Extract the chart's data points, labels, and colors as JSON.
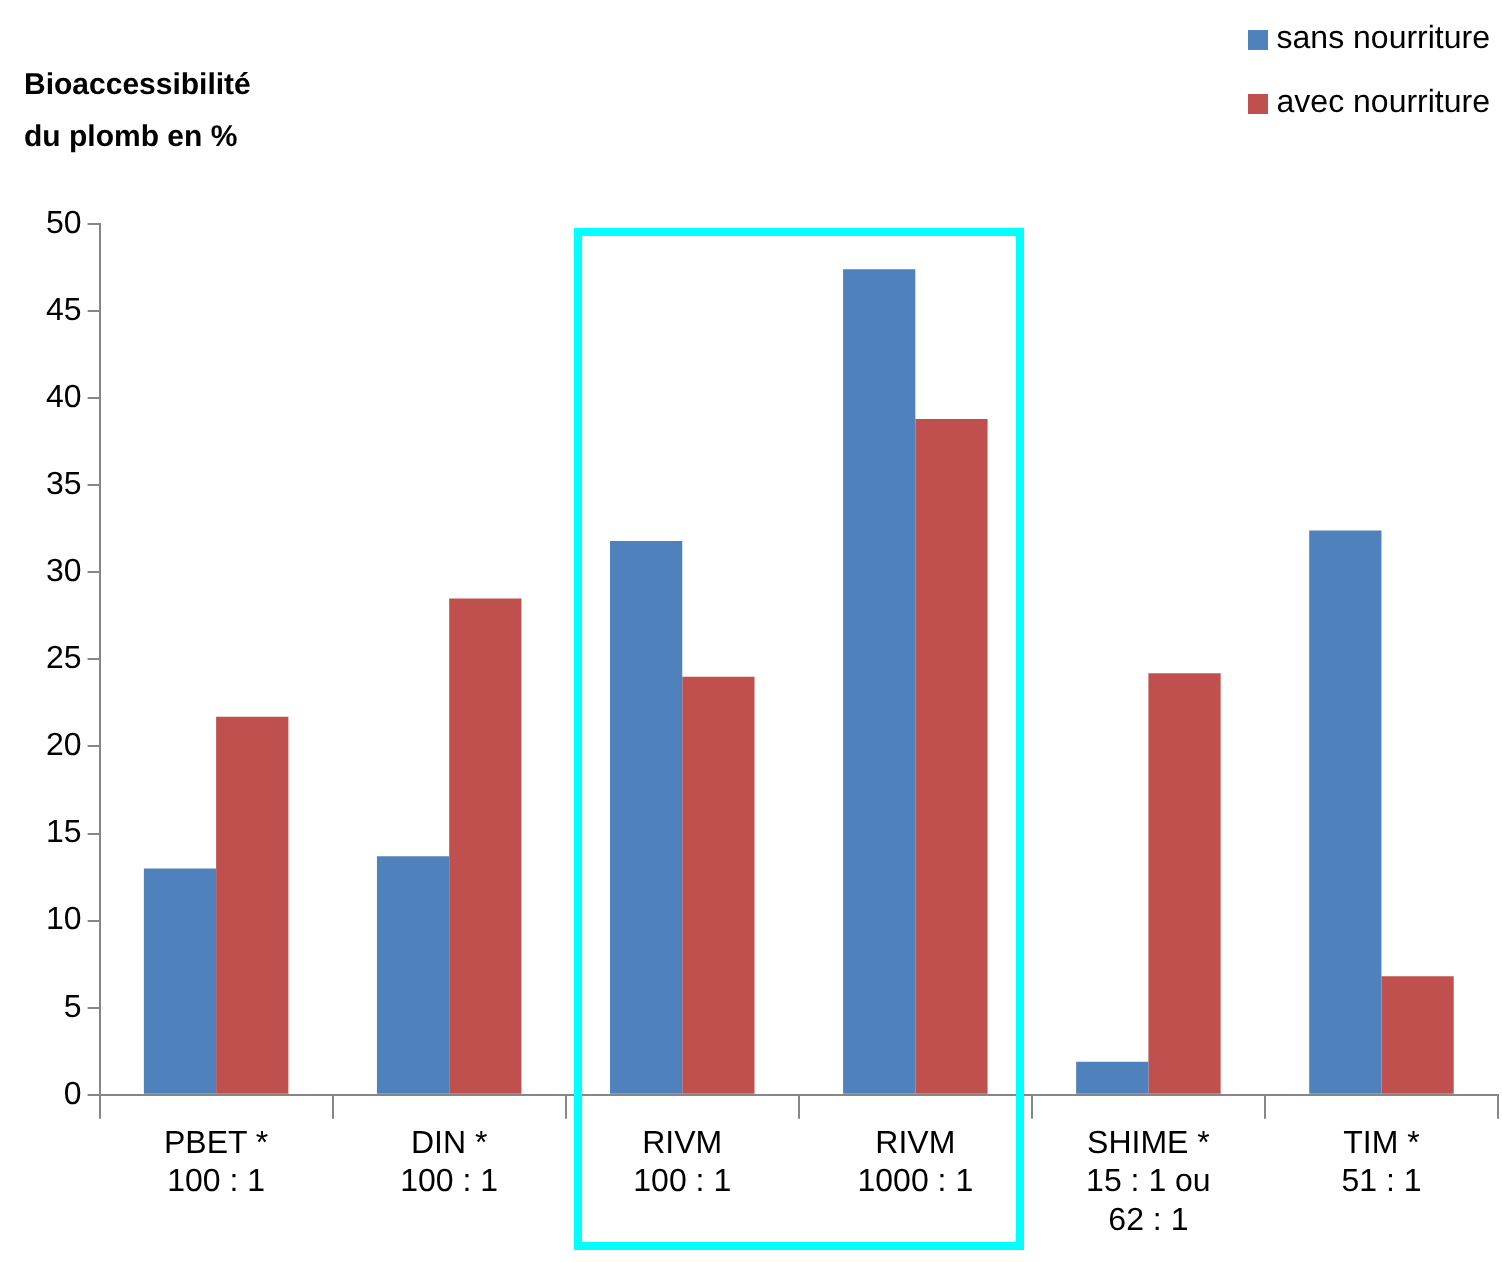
{
  "chart_data": {
    "type": "bar",
    "ylabel": "Bioaccessibilité\ndu plomb en %",
    "categories": [
      "PBET *\n100 : 1",
      "DIN *\n100 : 1",
      "RIVM\n100 : 1",
      "RIVM\n1000 : 1",
      "SHIME *\n15 : 1 ou\n62 : 1",
      "TIM *\n51 : 1"
    ],
    "series": [
      {
        "name": "sans nourriture",
        "color": "#4f81bd",
        "values": [
          13,
          13.7,
          31.8,
          47.4,
          1.9,
          32.4
        ]
      },
      {
        "name": "avec nourriture",
        "color": "#c0504d",
        "values": [
          21.7,
          28.5,
          24,
          38.8,
          24.2,
          6.8
        ]
      }
    ],
    "ylim": [
      0,
      50
    ],
    "yticks": [
      0,
      5,
      10,
      15,
      20,
      25,
      30,
      35,
      40,
      45,
      50
    ],
    "grid": false,
    "legend": "top right"
  }
}
